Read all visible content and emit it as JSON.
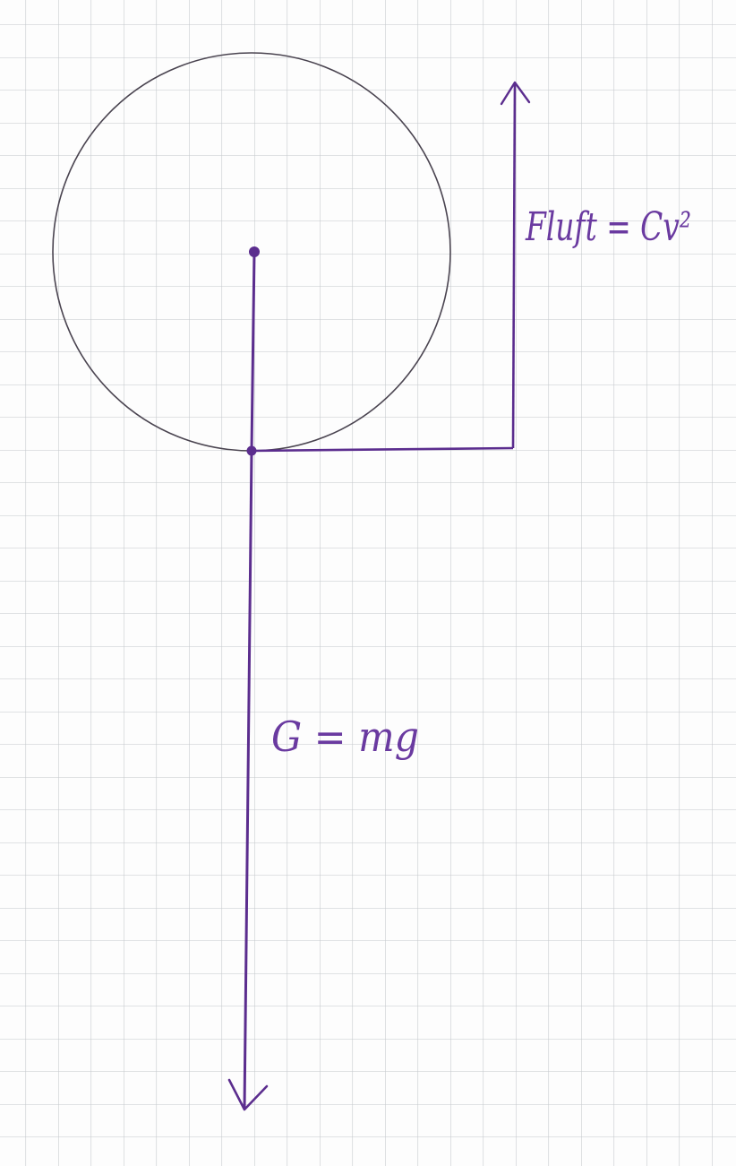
{
  "colors": {
    "paper": "#fdfdfd",
    "grid": "#c4c8cc",
    "pencil": "#4a4450",
    "ink": "#5b2d8e"
  },
  "labels": {
    "drag_force": "Fluft = Cv²",
    "gravity_force": "G = mg"
  }
}
